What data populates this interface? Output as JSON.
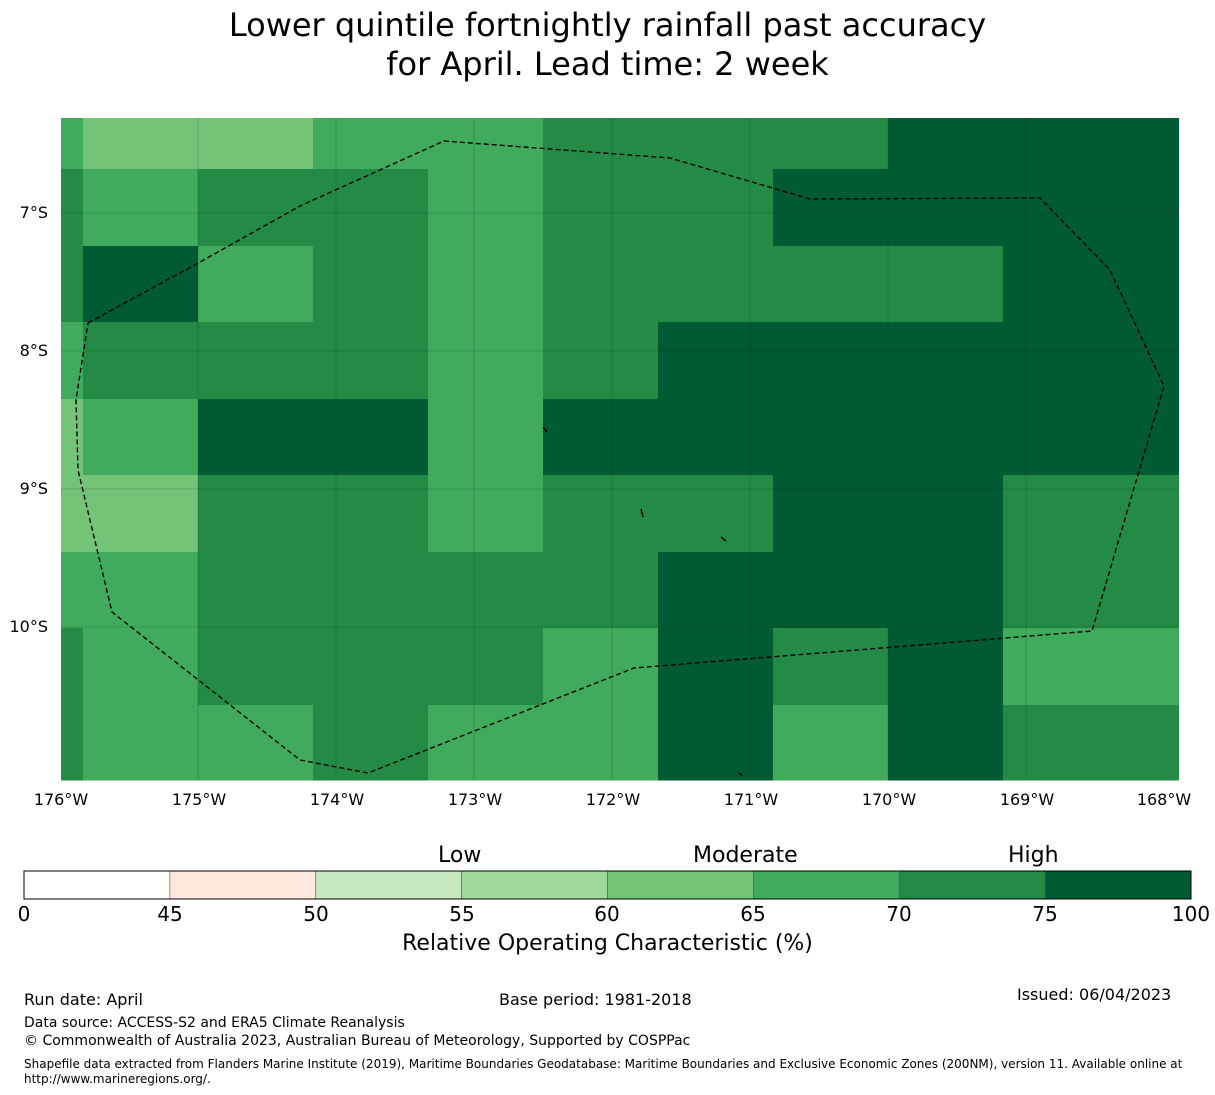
{
  "title": {
    "line1": "Lower quintile fortnightly rainfall past accuracy",
    "line2": "for April. Lead time: 2 week"
  },
  "map": {
    "lat_labels": [
      "7°S",
      "8°S",
      "9°S",
      "10°S"
    ],
    "lon_labels": [
      "176°W",
      "175°W",
      "174°W",
      "173°W",
      "172°W",
      "171°W",
      "170°W",
      "169°W",
      "168°W"
    ],
    "palette": {
      "c60_65": "#73c476",
      "c65_70": "#41ab5d",
      "c70_75": "#238b45",
      "c75_100": "#005a32"
    },
    "grid_rows": [
      [
        "c65_70",
        "c60_65",
        "c60_65",
        "c65_70",
        "c65_70",
        "c70_75",
        "c70_75",
        "c70_75",
        "c75_100",
        "c75_100"
      ],
      [
        "c70_75",
        "c65_70",
        "c70_75",
        "c70_75",
        "c65_70",
        "c70_75",
        "c70_75",
        "c75_100",
        "c75_100",
        "c75_100"
      ],
      [
        "c70_75",
        "c75_100",
        "c65_70",
        "c70_75",
        "c65_70",
        "c70_75",
        "c70_75",
        "c70_75",
        "c70_75",
        "c75_100"
      ],
      [
        "c65_70",
        "c70_75",
        "c70_75",
        "c70_75",
        "c65_70",
        "c70_75",
        "c75_100",
        "c75_100",
        "c75_100",
        "c75_100"
      ],
      [
        "c60_65",
        "c65_70",
        "c75_100",
        "c75_100",
        "c65_70",
        "c75_100",
        "c75_100",
        "c75_100",
        "c75_100",
        "c75_100"
      ],
      [
        "c60_65",
        "c60_65",
        "c70_75",
        "c70_75",
        "c65_70",
        "c70_75",
        "c70_75",
        "c75_100",
        "c75_100",
        "c70_75"
      ],
      [
        "c65_70",
        "c65_70",
        "c70_75",
        "c70_75",
        "c70_75",
        "c70_75",
        "c75_100",
        "c75_100",
        "c75_100",
        "c70_75"
      ],
      [
        "c70_75",
        "c65_70",
        "c70_75",
        "c70_75",
        "c70_75",
        "c65_70",
        "c75_100",
        "c70_75",
        "c75_100",
        "c65_70"
      ],
      [
        "c70_75",
        "c65_70",
        "c65_70",
        "c70_75",
        "c65_70",
        "c65_70",
        "c75_100",
        "c65_70",
        "c75_100",
        "c70_75"
      ]
    ]
  },
  "colorbar": {
    "ticks": [
      "0",
      "45",
      "50",
      "55",
      "60",
      "65",
      "70",
      "75",
      "100"
    ],
    "colors": [
      "#ffffff",
      "#fee8dd",
      "#c7e9c0",
      "#a1d99b",
      "#73c476",
      "#41ab5d",
      "#238b45",
      "#005a32"
    ],
    "category_labels": [
      "Low",
      "Moderate",
      "High"
    ],
    "title": "Relative Operating Characteristic (%)"
  },
  "footer": {
    "run_date": "Run date: April",
    "base_period": "Base period: 1981-2018",
    "issued": "Issued: 06/04/2023",
    "data_source": "Data source: ACCESS-S2 and ERA5 Climate Reanalysis",
    "copyright": "© Commonwealth of Australia 2023, Australian Bureau of Meteorology, Supported by COSPPac",
    "shapefile_line1": "Shapefile data extracted from Flanders Marine Institute (2019), Maritime Boundaries Geodatabase: Maritime Boundaries and Exclusive Economic Zones (200NM), version 11. Available online at",
    "shapefile_line2": "http://www.marineregions.org/."
  }
}
